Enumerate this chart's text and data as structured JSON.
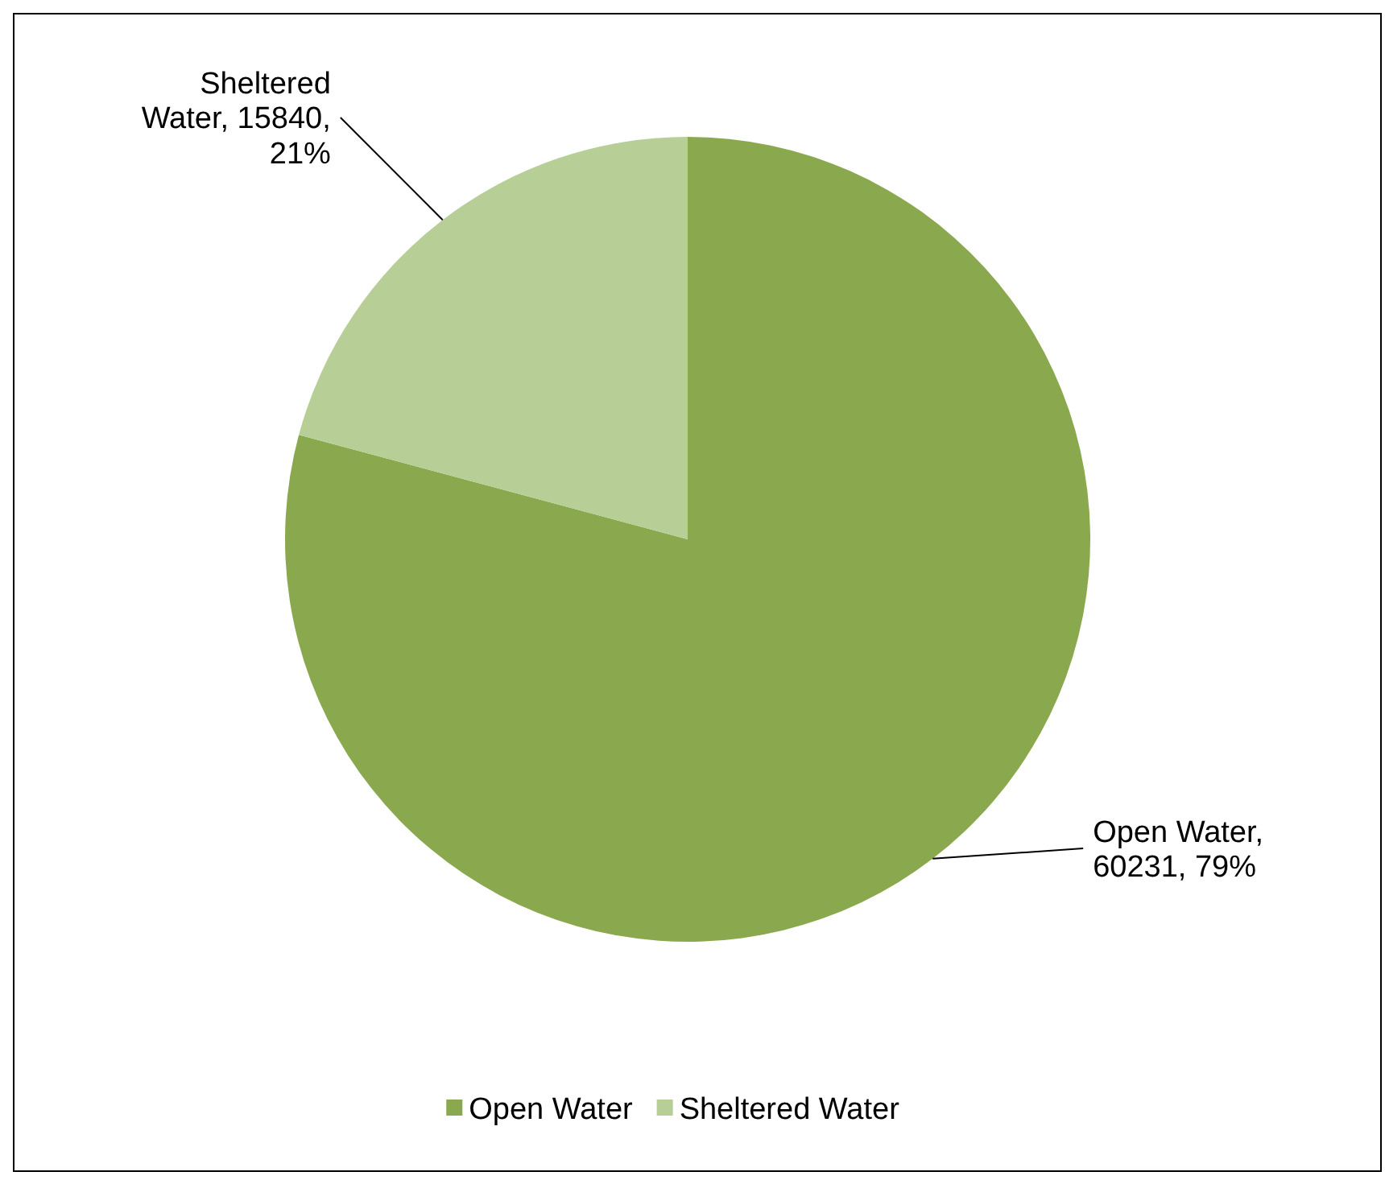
{
  "chart_data": {
    "type": "pie",
    "categories": [
      "Open Water",
      "Sheltered Water"
    ],
    "values": [
      60231,
      15840
    ],
    "colors": [
      "#8aa84e",
      "#b7cf96"
    ],
    "value_labels": [
      "Open Water, 60231, 79%",
      "Sheltered Water, 15840, 21%"
    ],
    "legend": "bottom"
  }
}
